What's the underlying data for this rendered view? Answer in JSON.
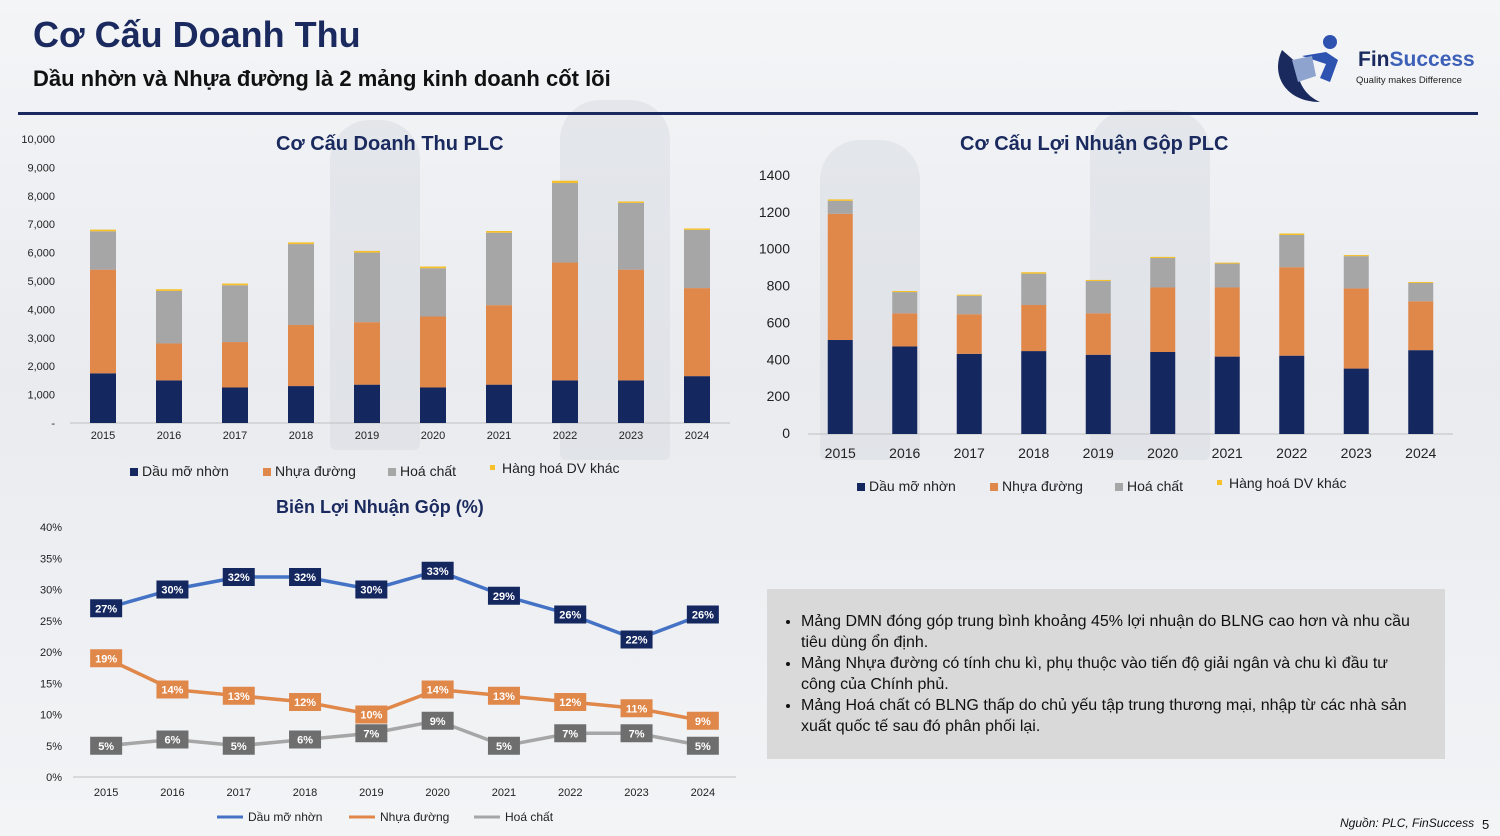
{
  "header": {
    "title": "Cơ Cấu Doanh Thu",
    "subtitle": "Dầu nhờn và Nhựa đường là 2 mảng kinh doanh cốt lõi"
  },
  "logo": {
    "name_part1": "Fin",
    "name_part2": "Success",
    "tagline": "Quality makes Difference"
  },
  "colors": {
    "navy": "#1a2a5e",
    "dmn": "#14275f",
    "nhua": "#e0874a",
    "hoa": "#a6a6a6",
    "hang": "#f5c028",
    "line_dmn": "#4472c4"
  },
  "chart_data": [
    {
      "type": "bar",
      "stacked": true,
      "title": "Cơ Cấu Doanh Thu PLC",
      "categories": [
        "2015",
        "2016",
        "2017",
        "2018",
        "2019",
        "2020",
        "2021",
        "2022",
        "2023",
        "2024"
      ],
      "ylim": [
        0,
        10000
      ],
      "yticks": [
        "-",
        "1,000",
        "2,000",
        "3,000",
        "4,000",
        "5,000",
        "6,000",
        "7,000",
        "8,000",
        "9,000",
        "10,000"
      ],
      "legend_position": "bottom",
      "series": [
        {
          "name": "Dầu mỡ nhờn",
          "values": [
            1750,
            1500,
            1250,
            1300,
            1350,
            1250,
            1350,
            1500,
            1500,
            1650
          ]
        },
        {
          "name": "Nhựa đường",
          "values": [
            3650,
            1300,
            1600,
            2150,
            2200,
            2500,
            2800,
            4150,
            3900,
            3100
          ]
        },
        {
          "name": "Hoá chất",
          "values": [
            1350,
            1850,
            2000,
            2850,
            2450,
            1700,
            2550,
            2800,
            2350,
            2050
          ]
        },
        {
          "name": "Hàng hoá DV khác",
          "values": [
            60,
            60,
            60,
            60,
            60,
            60,
            60,
            80,
            50,
            50
          ]
        }
      ]
    },
    {
      "type": "bar",
      "stacked": true,
      "title": "Cơ Cấu Lợi Nhuận Gộp PLC",
      "categories": [
        "2015",
        "2016",
        "2017",
        "2018",
        "2019",
        "2020",
        "2021",
        "2022",
        "2023",
        "2024"
      ],
      "ylim": [
        0,
        1400
      ],
      "yticks": [
        "0",
        "200",
        "400",
        "600",
        "800",
        "1000",
        "1200",
        "1400"
      ],
      "legend_position": "bottom",
      "series": [
        {
          "name": "Dầu mỡ nhờn",
          "values": [
            510,
            475,
            435,
            450,
            430,
            445,
            420,
            425,
            355,
            455
          ]
        },
        {
          "name": "Nhựa đường",
          "values": [
            685,
            180,
            215,
            250,
            225,
            350,
            375,
            480,
            435,
            265
          ]
        },
        {
          "name": "Hoá chất",
          "values": [
            70,
            115,
            100,
            170,
            175,
            160,
            130,
            175,
            175,
            100
          ]
        },
        {
          "name": "Hàng hoá DV khác",
          "values": [
            8,
            6,
            6,
            8,
            6,
            6,
            5,
            8,
            6,
            5
          ]
        }
      ]
    },
    {
      "type": "line",
      "title": "Biên Lợi Nhuận Gộp (%)",
      "categories": [
        "2015",
        "2016",
        "2017",
        "2018",
        "2019",
        "2020",
        "2021",
        "2022",
        "2023",
        "2024"
      ],
      "ylim": [
        0,
        40
      ],
      "yticks": [
        "0%",
        "5%",
        "10%",
        "15%",
        "20%",
        "25%",
        "30%",
        "35%",
        "40%"
      ],
      "legend_position": "bottom",
      "series": [
        {
          "name": "Dầu mỡ nhờn",
          "values": [
            27,
            30,
            32,
            32,
            30,
            33,
            29,
            26,
            22,
            26
          ],
          "labels": [
            "27%",
            "30%",
            "32%",
            "32%",
            "30%",
            "33%",
            "29%",
            "26%",
            "22%",
            "26%"
          ]
        },
        {
          "name": "Nhựa đường",
          "values": [
            19,
            14,
            13,
            12,
            10,
            14,
            13,
            12,
            11,
            9
          ],
          "labels": [
            "19%",
            "14%",
            "13%",
            "12%",
            "10%",
            "14%",
            "13%",
            "12%",
            "11%",
            "9%"
          ]
        },
        {
          "name": "Hoá chất",
          "values": [
            5,
            6,
            5,
            6,
            7,
            9,
            5,
            7,
            7,
            5
          ],
          "labels": [
            "5%",
            "6%",
            "5%",
            "6%",
            "7%",
            "9%",
            "5%",
            "7%",
            "7%",
            "5%"
          ]
        }
      ]
    }
  ],
  "notes": [
    "Mảng DMN đóng góp trung bình khoảng 45% lợi nhuận do BLNG cao hơn và nhu cầu tiêu dùng ổn định.",
    "Mảng Nhựa đường có tính chu kì, phụ thuộc vào tiến độ giải ngân và chu kì đầu tư công của Chính phủ.",
    "Mảng Hoá chất có BLNG thấp do chủ yếu tập trung thương mại, nhập từ các nhà sản xuất quốc tế sau đó phân phối lại."
  ],
  "footer": {
    "source": "Nguồn: PLC, FinSuccess",
    "page": "5"
  }
}
